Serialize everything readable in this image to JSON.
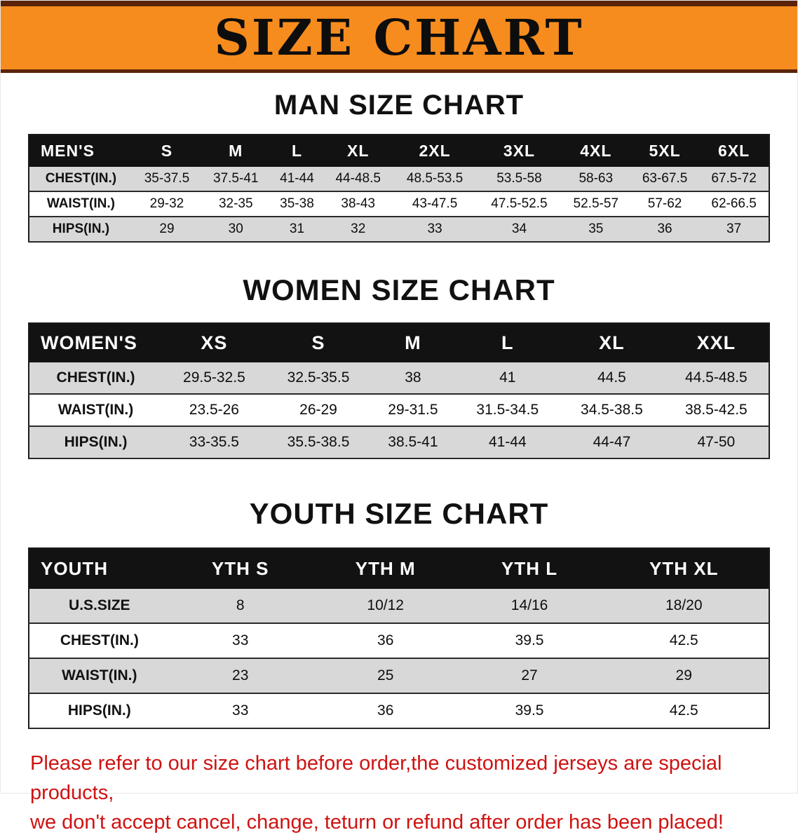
{
  "banner": {
    "title": "SIZE CHART"
  },
  "colors": {
    "banner_bg": "#F68C1E",
    "banner_border": "#5A2309",
    "table_header_bg": "#121212",
    "row_alt_bg": "#D8D8D8",
    "heading_text": "#111111",
    "disclaimer_text": "#CE1312"
  },
  "sections": [
    {
      "heading": "MAN SIZE CHART",
      "table": {
        "header": [
          "MEN'S",
          "S",
          "M",
          "L",
          "XL",
          "2XL",
          "3XL",
          "4XL",
          "5XL",
          "6XL"
        ],
        "rows": [
          [
            "CHEST(IN.)",
            "35-37.5",
            "37.5-41",
            "41-44",
            "44-48.5",
            "48.5-53.5",
            "53.5-58",
            "58-63",
            "63-67.5",
            "67.5-72"
          ],
          [
            "WAIST(IN.)",
            "29-32",
            "32-35",
            "35-38",
            "38-43",
            "43-47.5",
            "47.5-52.5",
            "52.5-57",
            "57-62",
            "62-66.5"
          ],
          [
            "HIPS(IN.)",
            "29",
            "30",
            "31",
            "32",
            "33",
            "34",
            "35",
            "36",
            "37"
          ]
        ]
      }
    },
    {
      "heading": "WOMEN SIZE CHART",
      "table": {
        "header": [
          "WOMEN'S",
          "XS",
          "S",
          "M",
          "L",
          "XL",
          "XXL"
        ],
        "rows": [
          [
            "CHEST(IN.)",
            "29.5-32.5",
            "32.5-35.5",
            "38",
            "41",
            "44.5",
            "44.5-48.5"
          ],
          [
            "WAIST(IN.)",
            "23.5-26",
            "26-29",
            "29-31.5",
            "31.5-34.5",
            "34.5-38.5",
            "38.5-42.5"
          ],
          [
            "HIPS(IN.)",
            "33-35.5",
            "35.5-38.5",
            "38.5-41",
            "41-44",
            "44-47",
            "47-50"
          ]
        ]
      }
    },
    {
      "heading": "YOUTH SIZE CHART",
      "table": {
        "header": [
          "YOUTH",
          "YTH S",
          "YTH M",
          "YTH L",
          "YTH XL"
        ],
        "rows": [
          [
            "U.S.SIZE",
            "8",
            "10/12",
            "14/16",
            "18/20"
          ],
          [
            "CHEST(IN.)",
            "33",
            "36",
            "39.5",
            "42.5"
          ],
          [
            "WAIST(IN.)",
            "23",
            "25",
            "27",
            "29"
          ],
          [
            "HIPS(IN.)",
            "33",
            "36",
            "39.5",
            "42.5"
          ]
        ]
      }
    }
  ],
  "disclaimer": {
    "line1": "Please refer to our size chart before order,the customized jerseys are special products,",
    "line2": "we don't accept cancel, change, teturn or refund after order has been placed!"
  }
}
